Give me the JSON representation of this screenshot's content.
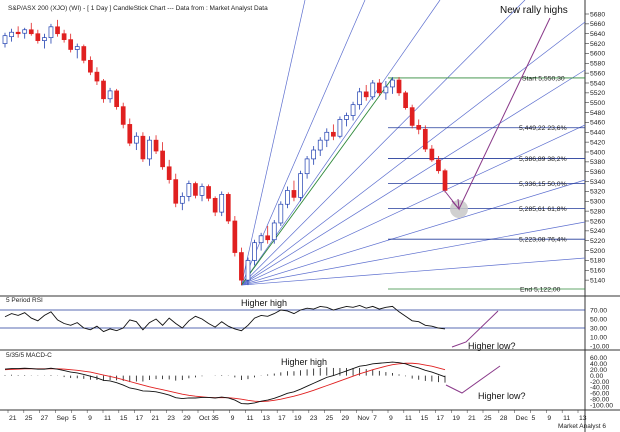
{
  "header": {
    "title": "S&P/ASX 200 (XJO) (WI) - [ 1 Day ] CandleStick Chart --- Data from : Market Analyst Data"
  },
  "footer": {
    "brand": "Market Analyst 6"
  },
  "colors": {
    "up": "#1f3fb0",
    "down": "#e02020",
    "fan": "#5d6fcf",
    "fib": "#223a9a",
    "green": "#2f8a3a",
    "purple": "#8a3a8a",
    "macd_line": "#111111",
    "macd_signal": "#e02020",
    "rsi_line": "#111111"
  },
  "annotations": {
    "new_rally_highs": "New rally highs",
    "higher_high_price": "Higher high",
    "higher_low_rsi": "Higher low?",
    "higher_high_macd": "Higher high",
    "higher_low_macd": "Higher low?"
  },
  "chart_data": [
    {
      "type": "candlestick",
      "panel": "price",
      "title": "S&P/ASX 200 (XJO) (WI) - [ 1 Day ] CandleStick Chart --- Data from : Market Analyst Data",
      "ylim": [
        5120,
        5680
      ],
      "y_ticks": [
        5680,
        5660,
        5640,
        5620,
        5600,
        5580,
        5560,
        5540,
        5520,
        5500,
        5480,
        5460,
        5440,
        5420,
        5400,
        5380,
        5360,
        5340,
        5320,
        5300,
        5280,
        5260,
        5240,
        5220,
        5200,
        5180,
        5160,
        5140
      ],
      "x_labels": [
        "21",
        "25",
        "27",
        "Sep",
        "5",
        "9",
        "11",
        "15",
        "17",
        "21",
        "23",
        "29",
        "Oct 3",
        "5",
        "9",
        "11",
        "13",
        "17",
        "19",
        "23",
        "25",
        "29",
        "Nov",
        "7",
        "9",
        "11",
        "15",
        "17",
        "19",
        "21",
        "25",
        "28",
        "Dec",
        "5",
        "9",
        "11",
        "13"
      ],
      "candles": [
        {
          "o": 5620,
          "h": 5642,
          "l": 5612,
          "c": 5636
        },
        {
          "o": 5634,
          "h": 5650,
          "l": 5624,
          "c": 5643
        },
        {
          "o": 5643,
          "h": 5655,
          "l": 5632,
          "c": 5640
        },
        {
          "o": 5641,
          "h": 5652,
          "l": 5630,
          "c": 5648
        },
        {
          "o": 5648,
          "h": 5662,
          "l": 5636,
          "c": 5640
        },
        {
          "o": 5640,
          "h": 5648,
          "l": 5620,
          "c": 5626
        },
        {
          "o": 5626,
          "h": 5640,
          "l": 5610,
          "c": 5632
        },
        {
          "o": 5632,
          "h": 5660,
          "l": 5620,
          "c": 5654
        },
        {
          "o": 5654,
          "h": 5668,
          "l": 5634,
          "c": 5640
        },
        {
          "o": 5640,
          "h": 5648,
          "l": 5622,
          "c": 5628
        },
        {
          "o": 5628,
          "h": 5640,
          "l": 5602,
          "c": 5608
        },
        {
          "o": 5608,
          "h": 5620,
          "l": 5590,
          "c": 5614
        },
        {
          "o": 5614,
          "h": 5618,
          "l": 5580,
          "c": 5586
        },
        {
          "o": 5586,
          "h": 5594,
          "l": 5556,
          "c": 5562
        },
        {
          "o": 5562,
          "h": 5572,
          "l": 5536,
          "c": 5544
        },
        {
          "o": 5544,
          "h": 5548,
          "l": 5500,
          "c": 5508
        },
        {
          "o": 5508,
          "h": 5530,
          "l": 5500,
          "c": 5524
        },
        {
          "o": 5524,
          "h": 5528,
          "l": 5486,
          "c": 5492
        },
        {
          "o": 5492,
          "h": 5500,
          "l": 5448,
          "c": 5456
        },
        {
          "o": 5456,
          "h": 5468,
          "l": 5412,
          "c": 5418
        },
        {
          "o": 5418,
          "h": 5440,
          "l": 5404,
          "c": 5432
        },
        {
          "o": 5432,
          "h": 5440,
          "l": 5380,
          "c": 5386
        },
        {
          "o": 5386,
          "h": 5432,
          "l": 5372,
          "c": 5424
        },
        {
          "o": 5424,
          "h": 5434,
          "l": 5396,
          "c": 5402
        },
        {
          "o": 5402,
          "h": 5420,
          "l": 5364,
          "c": 5370
        },
        {
          "o": 5370,
          "h": 5384,
          "l": 5336,
          "c": 5344
        },
        {
          "o": 5344,
          "h": 5356,
          "l": 5288,
          "c": 5296
        },
        {
          "o": 5296,
          "h": 5318,
          "l": 5282,
          "c": 5310
        },
        {
          "o": 5310,
          "h": 5342,
          "l": 5300,
          "c": 5336
        },
        {
          "o": 5336,
          "h": 5340,
          "l": 5306,
          "c": 5312
        },
        {
          "o": 5312,
          "h": 5336,
          "l": 5300,
          "c": 5330
        },
        {
          "o": 5330,
          "h": 5334,
          "l": 5300,
          "c": 5306
        },
        {
          "o": 5306,
          "h": 5310,
          "l": 5270,
          "c": 5278
        },
        {
          "o": 5278,
          "h": 5320,
          "l": 5270,
          "c": 5314
        },
        {
          "o": 5314,
          "h": 5318,
          "l": 5254,
          "c": 5260
        },
        {
          "o": 5260,
          "h": 5270,
          "l": 5188,
          "c": 5196
        },
        {
          "o": 5196,
          "h": 5206,
          "l": 5130,
          "c": 5140
        },
        {
          "o": 5140,
          "h": 5186,
          "l": 5130,
          "c": 5180
        },
        {
          "o": 5180,
          "h": 5222,
          "l": 5170,
          "c": 5216
        },
        {
          "o": 5216,
          "h": 5236,
          "l": 5200,
          "c": 5230
        },
        {
          "o": 5230,
          "h": 5250,
          "l": 5214,
          "c": 5222
        },
        {
          "o": 5222,
          "h": 5262,
          "l": 5214,
          "c": 5256
        },
        {
          "o": 5256,
          "h": 5300,
          "l": 5250,
          "c": 5294
        },
        {
          "o": 5294,
          "h": 5330,
          "l": 5286,
          "c": 5322
        },
        {
          "o": 5322,
          "h": 5342,
          "l": 5300,
          "c": 5308
        },
        {
          "o": 5308,
          "h": 5362,
          "l": 5300,
          "c": 5356
        },
        {
          "o": 5356,
          "h": 5392,
          "l": 5346,
          "c": 5386
        },
        {
          "o": 5386,
          "h": 5412,
          "l": 5374,
          "c": 5404
        },
        {
          "o": 5404,
          "h": 5430,
          "l": 5392,
          "c": 5424
        },
        {
          "o": 5424,
          "h": 5448,
          "l": 5410,
          "c": 5440
        },
        {
          "o": 5440,
          "h": 5456,
          "l": 5424,
          "c": 5432
        },
        {
          "o": 5432,
          "h": 5472,
          "l": 5428,
          "c": 5466
        },
        {
          "o": 5466,
          "h": 5480,
          "l": 5452,
          "c": 5474
        },
        {
          "o": 5474,
          "h": 5502,
          "l": 5464,
          "c": 5496
        },
        {
          "o": 5496,
          "h": 5530,
          "l": 5486,
          "c": 5522
        },
        {
          "o": 5522,
          "h": 5536,
          "l": 5504,
          "c": 5512
        },
        {
          "o": 5512,
          "h": 5546,
          "l": 5506,
          "c": 5540
        },
        {
          "o": 5540,
          "h": 5548,
          "l": 5514,
          "c": 5520
        },
        {
          "o": 5520,
          "h": 5544,
          "l": 5506,
          "c": 5532
        },
        {
          "o": 5532,
          "h": 5552,
          "l": 5518,
          "c": 5546
        },
        {
          "o": 5546,
          "h": 5552,
          "l": 5514,
          "c": 5520
        },
        {
          "o": 5520,
          "h": 5524,
          "l": 5486,
          "c": 5490
        },
        {
          "o": 5490,
          "h": 5496,
          "l": 5448,
          "c": 5454
        },
        {
          "o": 5454,
          "h": 5466,
          "l": 5436,
          "c": 5446
        },
        {
          "o": 5446,
          "h": 5454,
          "l": 5400,
          "c": 5406
        },
        {
          "o": 5406,
          "h": 5414,
          "l": 5380,
          "c": 5384
        },
        {
          "o": 5384,
          "h": 5392,
          "l": 5356,
          "c": 5362
        },
        {
          "o": 5362,
          "h": 5366,
          "l": 5318,
          "c": 5322
        }
      ]
    },
    {
      "type": "table",
      "panel": "fibonacci",
      "levels": [
        {
          "label": "Start 5,550,30",
          "value": 5550.3
        },
        {
          "label": "5,449,22 23,6%",
          "value": 5449.22
        },
        {
          "label": "5,386,89 38,2%",
          "value": 5386.89
        },
        {
          "label": "5,336,15 50,0%",
          "value": 5336.15
        },
        {
          "label": "5,285,61 61,8%",
          "value": 5285.61
        },
        {
          "label": "5,223,08 76,4%",
          "value": 5223.08
        },
        {
          "label": "End 5,122,00",
          "value": 5122.0
        }
      ]
    },
    {
      "type": "line",
      "panel": "rsi",
      "title": "5 Period RSI",
      "ylim": [
        -10,
        90
      ],
      "y_ticks": [
        70.0,
        50.0,
        30.0,
        10.0,
        -10.0
      ],
      "values": [
        55,
        62,
        58,
        64,
        52,
        46,
        58,
        66,
        48,
        40,
        36,
        42,
        30,
        26,
        34,
        22,
        28,
        24,
        30,
        48,
        44,
        26,
        42,
        50,
        36,
        52,
        40,
        30,
        46,
        56,
        50,
        40,
        32,
        44,
        34,
        28,
        24,
        36,
        52,
        58,
        56,
        62,
        70,
        68,
        62,
        70,
        74,
        72,
        78,
        76,
        70,
        74,
        78,
        76,
        80,
        74,
        78,
        72,
        76,
        78,
        66,
        56,
        46,
        44,
        36,
        34,
        30,
        28
      ]
    },
    {
      "type": "line",
      "panel": "macd",
      "title": "5/35/5 MACD-C",
      "ylim": [
        -110,
        70
      ],
      "y_ticks": [
        60.0,
        40.0,
        20.0,
        0.0,
        -20.0,
        -40.0,
        -60.0,
        -80.0,
        -100.0
      ],
      "series": [
        {
          "values": [
            22,
            24,
            24,
            25,
            24,
            22,
            22,
            25,
            22,
            17,
            12,
            9,
            4,
            -2,
            -8,
            -16,
            -18,
            -24,
            -32,
            -42,
            -46,
            -52,
            -53,
            -55,
            -60,
            -66,
            -75,
            -78,
            -76,
            -76,
            -74,
            -74,
            -76,
            -73,
            -76,
            -83,
            -95,
            -96,
            -93,
            -87,
            -83,
            -77,
            -69,
            -60,
            -55,
            -46,
            -36,
            -26,
            -16,
            -6,
            0,
            8,
            16,
            24,
            32,
            35,
            40,
            42,
            44,
            46,
            44,
            40,
            32,
            26,
            18,
            12,
            4,
            -4
          ]
        },
        {
          "values": [
            20,
            21,
            22,
            23,
            23,
            23,
            23,
            23,
            23,
            22,
            20,
            18,
            15,
            12,
            7,
            2,
            -3,
            -8,
            -14,
            -20,
            -26,
            -32,
            -38,
            -43,
            -48,
            -53,
            -58,
            -63,
            -67,
            -70,
            -72,
            -74,
            -75,
            -75,
            -75,
            -77,
            -80,
            -84,
            -87,
            -88,
            -87,
            -84,
            -80,
            -75,
            -70,
            -64,
            -57,
            -50,
            -42,
            -34,
            -26,
            -18,
            -10,
            -2,
            6,
            13,
            20,
            26,
            32,
            37,
            40,
            42,
            42,
            40,
            36,
            32,
            26,
            20
          ]
        }
      ]
    }
  ]
}
